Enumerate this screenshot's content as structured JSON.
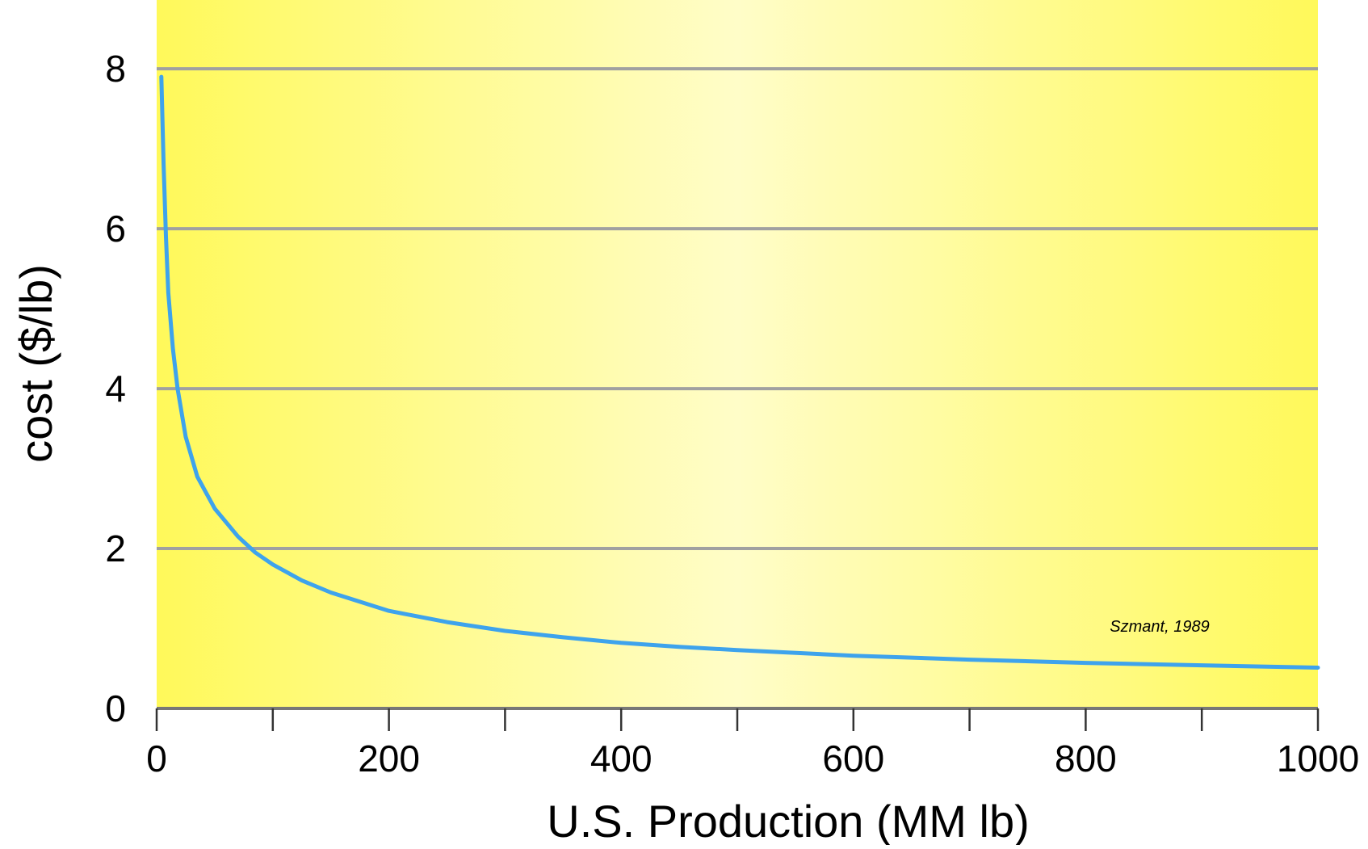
{
  "chart_data": {
    "type": "line",
    "xlabel": "U.S. Production (MM lb)",
    "ylabel": "cost ($/lb)",
    "xlim": [
      0,
      1000
    ],
    "ylim": [
      0,
      8.8
    ],
    "x_ticks": [
      0,
      200,
      400,
      600,
      800,
      1000
    ],
    "x_minor_ticks": [
      100,
      300,
      500,
      700,
      900
    ],
    "y_ticks": [
      0,
      2,
      4,
      6,
      8
    ],
    "grid": "horizontal",
    "annotation": "Szmant, 1989",
    "series": [
      {
        "color": "#3ea3ec",
        "points": [
          [
            4,
            7.9
          ],
          [
            6,
            6.8
          ],
          [
            8,
            5.9
          ],
          [
            10,
            5.2
          ],
          [
            14,
            4.5
          ],
          [
            18,
            4.0
          ],
          [
            25,
            3.4
          ],
          [
            35,
            2.9
          ],
          [
            50,
            2.5
          ],
          [
            70,
            2.15
          ],
          [
            85,
            1.95
          ],
          [
            100,
            1.8
          ],
          [
            125,
            1.6
          ],
          [
            150,
            1.45
          ],
          [
            200,
            1.22
          ],
          [
            250,
            1.08
          ],
          [
            300,
            0.97
          ],
          [
            350,
            0.89
          ],
          [
            400,
            0.82
          ],
          [
            450,
            0.77
          ],
          [
            500,
            0.73
          ],
          [
            600,
            0.66
          ],
          [
            700,
            0.61
          ],
          [
            800,
            0.57
          ],
          [
            900,
            0.54
          ],
          [
            1000,
            0.51
          ]
        ]
      }
    ],
    "colors": {
      "background_edge": "#fff95a",
      "background_center": "#fffdc8",
      "gridline": "#a0a0a0",
      "axis": "#777777"
    }
  }
}
